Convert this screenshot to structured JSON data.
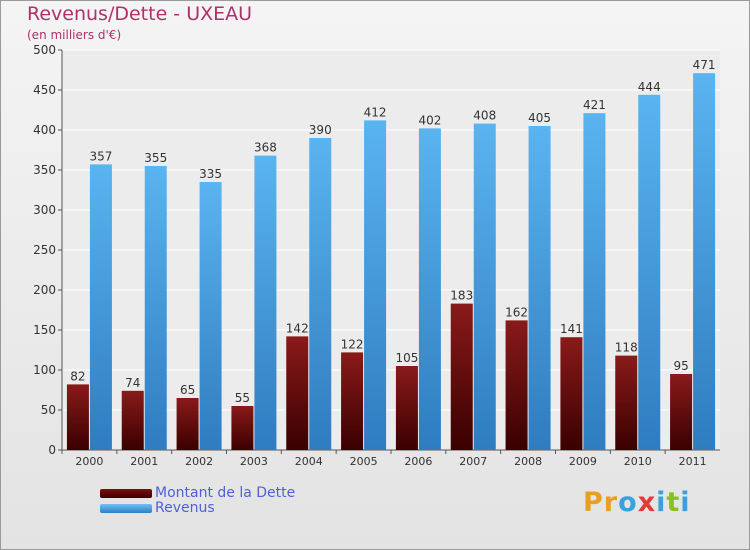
{
  "title": "Revenus/Dette - UXEAU",
  "subtitle": "(en milliers d'€)",
  "brand": "Proxiti",
  "chart_data": {
    "type": "bar",
    "categories": [
      "2000",
      "2001",
      "2002",
      "2003",
      "2004",
      "2005",
      "2006",
      "2007",
      "2008",
      "2009",
      "2010",
      "2011"
    ],
    "series": [
      {
        "name": "Montant de la Dette",
        "color": "#7a1010",
        "values": [
          82,
          74,
          65,
          55,
          142,
          122,
          105,
          183,
          162,
          141,
          118,
          95
        ]
      },
      {
        "name": "Revenus",
        "color": "#4aa3e8",
        "values": [
          357,
          355,
          335,
          368,
          390,
          412,
          402,
          408,
          405,
          421,
          444,
          471
        ]
      }
    ],
    "ylim": [
      0,
      500
    ],
    "yticks": [
      0,
      50,
      100,
      150,
      200,
      250,
      300,
      350,
      400,
      450,
      500
    ],
    "grid": true,
    "legend_position": "bottom-left"
  },
  "colors": {
    "title": "#b0306a",
    "debt": "#7a1010",
    "revenue": "#4aa3e8",
    "legend_text": "#4f5fd8"
  }
}
